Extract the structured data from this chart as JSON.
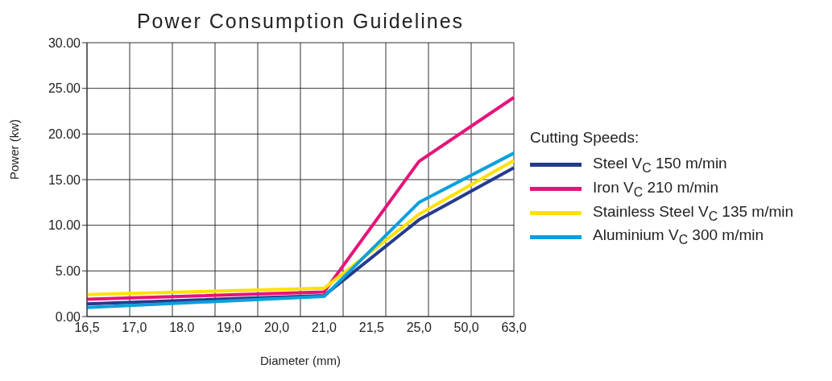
{
  "chart_data": {
    "type": "line",
    "title": "Power Consumption Guidelines",
    "xlabel": "Diameter (mm)",
    "ylabel": "Power (kw)",
    "legend_title": "Cutting Speeds:",
    "categories": [
      "16,5",
      "17,0",
      "18.0",
      "19,0",
      "20,0",
      "21,0",
      "21,5",
      "25,0",
      "50,0",
      "63,0"
    ],
    "series": [
      {
        "name": "Steel V$_{C}$ 150 m/min",
        "color": "#253b8c",
        "values": [
          1.4,
          null,
          null,
          null,
          null,
          2.3,
          null,
          10.6,
          null,
          16.3
        ]
      },
      {
        "name": "Iron V$_{C}$ 210 m/min",
        "color": "#e5147a",
        "values": [
          1.9,
          null,
          null,
          null,
          null,
          2.7,
          null,
          17.0,
          null,
          24.0
        ]
      },
      {
        "name": "Stainless Steel V$_{C}$ 135 m/min",
        "color": "#ffe100",
        "values": [
          2.4,
          null,
          null,
          null,
          null,
          3.1,
          null,
          11.2,
          null,
          17.1
        ]
      },
      {
        "name": "Aluminium V$_{C}$ 300 m/min",
        "color": "#0aa0dc",
        "values": [
          1.0,
          null,
          null,
          null,
          null,
          2.2,
          null,
          12.5,
          null,
          17.9
        ]
      }
    ],
    "ylim": [
      0,
      30
    ],
    "yticks": [
      {
        "value": 0,
        "label": "0.00"
      },
      {
        "value": 5,
        "label": "5.00"
      },
      {
        "value": 10,
        "label": "10.00"
      },
      {
        "value": 15,
        "label": "15.00"
      },
      {
        "value": 20,
        "label": "20.00"
      },
      {
        "value": 25,
        "label": "25.00"
      },
      {
        "value": 30,
        "label": "30.00"
      }
    ],
    "grid": true,
    "legend": "right",
    "marker": "none",
    "line_style": "solid"
  }
}
